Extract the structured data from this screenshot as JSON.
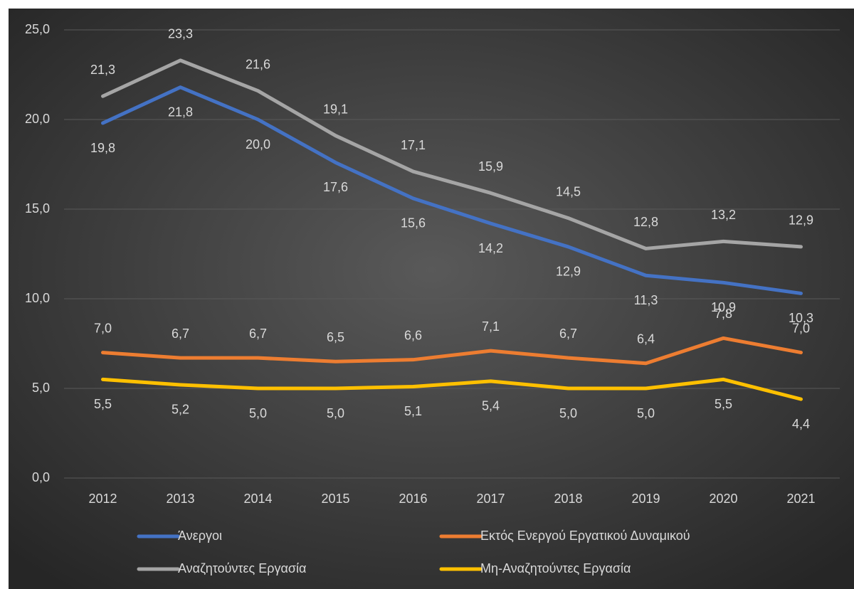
{
  "chart_data": {
    "type": "line",
    "categories": [
      "2012",
      "2013",
      "2014",
      "2015",
      "2016",
      "2017",
      "2018",
      "2019",
      "2020",
      "2021"
    ],
    "series": [
      {
        "name": "Άνεργοι",
        "color": "#4472c4",
        "values": [
          19.8,
          21.8,
          20.0,
          17.6,
          15.6,
          14.2,
          12.9,
          11.3,
          10.9,
          10.3
        ],
        "value_labels": [
          "19,8",
          "21,8",
          "20,0",
          "17,6",
          "15,6",
          "14,2",
          "12,9",
          "11,3",
          "10,9",
          "10,3"
        ]
      },
      {
        "name": "Εκτός Ενεργού Εργατικού Δυναμικού",
        "color": "#ed7d31",
        "values": [
          7.0,
          6.7,
          6.7,
          6.5,
          6.6,
          7.1,
          6.7,
          6.4,
          7.8,
          7.0
        ],
        "value_labels": [
          "7,0",
          "6,7",
          "6,7",
          "6,5",
          "6,6",
          "7,1",
          "6,7",
          "6,4",
          "7,8",
          "7,0"
        ]
      },
      {
        "name": "Αναζητούντες Εργασία",
        "color": "#a5a5a5",
        "values": [
          21.3,
          23.3,
          21.6,
          19.1,
          17.1,
          15.9,
          14.5,
          12.8,
          13.2,
          12.9
        ],
        "value_labels": [
          "21,3",
          "23,3",
          "21,6",
          "19,1",
          "17,1",
          "15,9",
          "14,5",
          "12,8",
          "13,2",
          "12,9"
        ]
      },
      {
        "name": "Μη-Αναζητούντες Εργασία",
        "color": "#ffc000",
        "values": [
          5.5,
          5.2,
          5.0,
          5.0,
          5.1,
          5.4,
          5.0,
          5.0,
          5.5,
          4.4
        ],
        "value_labels": [
          "5,5",
          "5,2",
          "5,0",
          "5,0",
          "5,1",
          "5,4",
          "5,0",
          "5,0",
          "5,5",
          "4,4"
        ]
      }
    ],
    "ylim": [
      0,
      25
    ],
    "yticks": [
      {
        "value": 0,
        "label": "0,0"
      },
      {
        "value": 5,
        "label": "5,0"
      },
      {
        "value": 10,
        "label": "10,0"
      },
      {
        "value": 15,
        "label": "15,0"
      },
      {
        "value": 20,
        "label": "20,0"
      },
      {
        "value": 25,
        "label": "25,0"
      }
    ],
    "grid": true,
    "legend": "bottom"
  }
}
